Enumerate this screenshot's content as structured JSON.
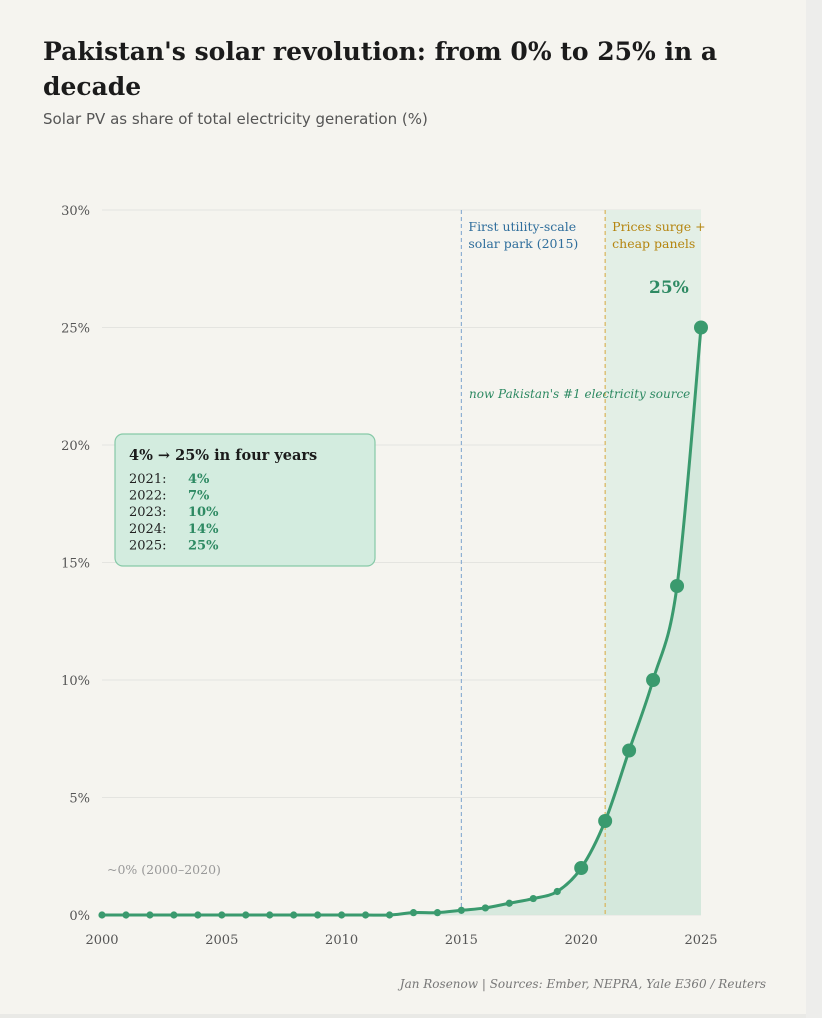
{
  "title": "Pakistan's solar revolution: from 0% to 25% in a decade",
  "subtitle": "Solar PV as share of total electricity generation (%)",
  "footer": "Jan Rosenow  |  Sources: Ember, NEPRA, Yale E360 / Reuters",
  "colors": {
    "line": "#3a9a6e",
    "area": "#cfe6da",
    "highlight_band": "#e3efe6",
    "annotation_blue": "#2f6e9c",
    "annotation_orange": "#b5850f",
    "annotation_green": "#2e8a63",
    "muted": "#999999",
    "grid": "#e4e4e0"
  },
  "chart_data": {
    "type": "line",
    "x": [
      2000,
      2001,
      2002,
      2003,
      2004,
      2005,
      2006,
      2007,
      2008,
      2009,
      2010,
      2011,
      2012,
      2013,
      2014,
      2015,
      2016,
      2017,
      2018,
      2019,
      2020,
      2021,
      2022,
      2023,
      2024,
      2025
    ],
    "series": [
      {
        "values": [
          0,
          0,
          0,
          0,
          0,
          0,
          0,
          0,
          0,
          0,
          0,
          0,
          0,
          0.1,
          0.1,
          0.2,
          0.3,
          0.5,
          0.7,
          1,
          2,
          4,
          7,
          10,
          14,
          25
        ]
      }
    ],
    "large_markers_x": [
      2020,
      2021,
      2022,
      2023,
      2024,
      2025
    ],
    "xlim": [
      2000,
      2025
    ],
    "ylim": [
      0,
      30
    ],
    "x_ticks": [
      "2000",
      "2005",
      "2010",
      "2015",
      "2020",
      "2025"
    ],
    "y_ticks": [
      "0%",
      "5%",
      "10%",
      "15%",
      "20%",
      "25%",
      "30%"
    ],
    "grid": true,
    "highlight_range": [
      2021,
      2025
    ],
    "annotations": {
      "utility_scale": {
        "x": 2015,
        "line1": "First utility-scale",
        "line2": "solar park (2015)"
      },
      "prices_surge": {
        "x": 2021,
        "line1": "Prices surge +",
        "line2": "cheap panels"
      },
      "end_value_label": "25%",
      "number_one_source": "now Pakistan's #1 electricity source",
      "near_zero_note": "~0% (2000–2020)"
    },
    "callout": {
      "title": "4% → 25% in four years",
      "rows": [
        {
          "year": "2021:",
          "value": "4%"
        },
        {
          "year": "2022:",
          "value": "7%"
        },
        {
          "year": "2023:",
          "value": "10%"
        },
        {
          "year": "2024:",
          "value": "14%"
        },
        {
          "year": "2025:",
          "value": "25%"
        }
      ]
    }
  }
}
